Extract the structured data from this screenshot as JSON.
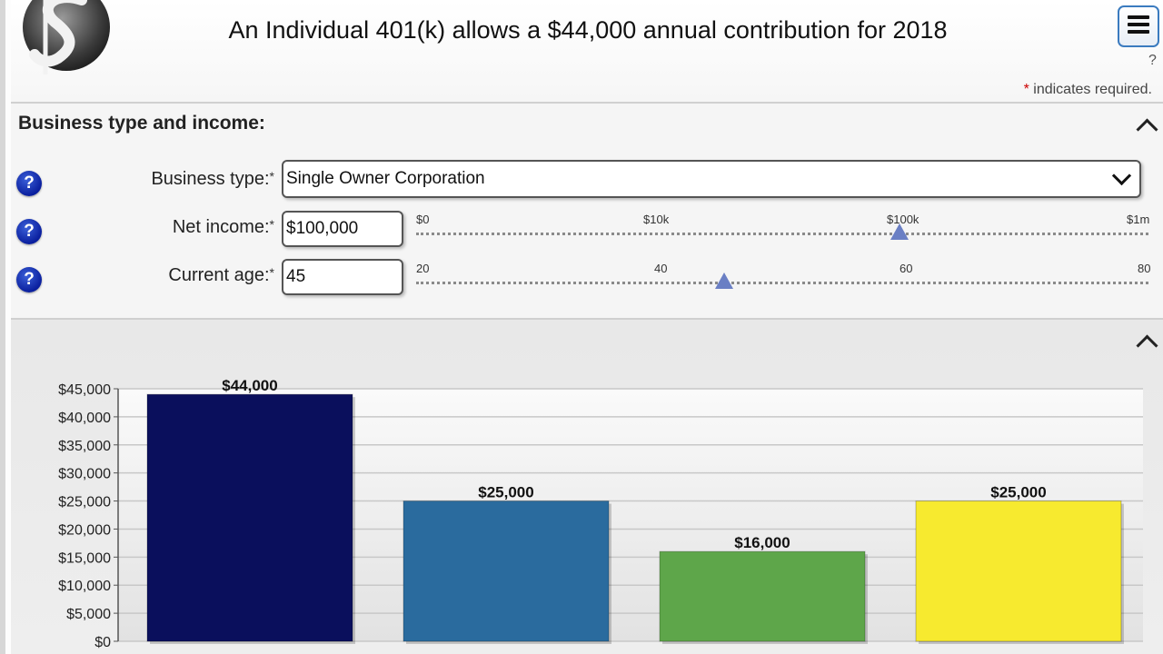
{
  "header": {
    "headline": "An Individual 401(k) allows a $44,000 annual contribution for 2018",
    "menu_icon": "hamburger-menu-icon",
    "help_mark": "?",
    "required_star": "*",
    "required_note": " indicates required."
  },
  "business": {
    "title": "Business type and income:",
    "help_mark": "?",
    "fields": {
      "business_type": {
        "label": "Business type:",
        "star": "*",
        "value": "Single Owner Corporation"
      },
      "net_income": {
        "label": "Net income:",
        "star": "*",
        "value": "$100,000",
        "ticks": [
          "$0",
          "$10k",
          "$100k",
          "$1m"
        ],
        "level": 0.66
      },
      "current_age": {
        "label": "Current age:",
        "star": "*",
        "value": "45",
        "ticks": [
          "20",
          "40",
          "60",
          "80"
        ],
        "level": 0.42
      }
    }
  },
  "chart_data": {
    "type": "bar",
    "y_ticks": [
      "$45,000",
      "$40,000",
      "$35,000",
      "$30,000",
      "$25,000",
      "$20,000",
      "$15,000",
      "$10,000",
      "$5,000",
      "$0"
    ],
    "ylim": [
      0,
      45000
    ],
    "values": [
      44000,
      25000,
      16000,
      25000
    ],
    "value_labels": [
      "$44,000",
      "$25,000",
      "$16,000",
      "$25,000"
    ],
    "colors": [
      "#0a0f5c",
      "#2a6b9e",
      "#5ea64a",
      "#f7ea2f"
    ],
    "grid": true
  }
}
